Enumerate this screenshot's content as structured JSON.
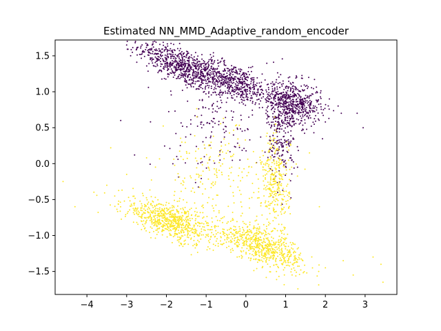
{
  "chart_data": {
    "type": "scatter",
    "title": "Estimated NN_MMD_Adaptive_random_encoder",
    "xlabel": "",
    "ylabel": "",
    "xlim": [
      -4.8,
      3.8
    ],
    "ylim": [
      -1.82,
      1.72
    ],
    "x_ticks": [
      -4,
      -3,
      -2,
      -1,
      0,
      1,
      2,
      3
    ],
    "y_ticks": [
      -1.5,
      -1.0,
      -0.5,
      0.0,
      0.5,
      1.0,
      1.5
    ],
    "x_tick_labels": [
      "−4",
      "−3",
      "−2",
      "−1",
      "0",
      "1",
      "2",
      "3"
    ],
    "y_tick_labels": [
      "−1.5",
      "−1.0",
      "−0.5",
      "0.0",
      "0.5",
      "1.0",
      "1.5"
    ],
    "grid": false,
    "legend": "none",
    "series": [
      {
        "color": "#440154",
        "clusters": [
          {
            "center": [
              -1.6,
              1.35
            ],
            "spread": [
              0.55,
              0.12
            ],
            "slope": -0.25,
            "count": 700
          },
          {
            "center": [
              -0.3,
              1.15
            ],
            "spread": [
              0.5,
              0.12
            ],
            "slope": -0.2,
            "count": 500
          },
          {
            "center": [
              1.2,
              0.85
            ],
            "spread": [
              0.35,
              0.15
            ],
            "slope": -0.1,
            "count": 550
          },
          {
            "center": [
              0.9,
              0.45
            ],
            "spread": [
              0.18,
              0.35
            ],
            "slope": 0.0,
            "count": 250
          },
          {
            "center": [
              -0.8,
              0.6
            ],
            "spread": [
              0.6,
              0.35
            ],
            "slope": 0.0,
            "count": 150
          }
        ],
        "points": [
          [
            -2.45,
            1.55
          ],
          [
            -2.35,
            1.4
          ],
          [
            -2.9,
            1.5
          ],
          [
            -3.0,
            1.65
          ],
          [
            -1.85,
            1.56
          ],
          [
            1.95,
            0.75
          ],
          [
            2.4,
            0.7
          ],
          [
            2.8,
            0.7
          ],
          [
            2.95,
            0.5
          ],
          [
            2.1,
            0.9
          ],
          [
            -3.15,
            0.6
          ],
          [
            -2.8,
            0.12
          ],
          [
            -2.4,
            0.58
          ],
          [
            0.7,
            0.05
          ],
          [
            0.8,
            -0.4
          ],
          [
            0.6,
            0.2
          ],
          [
            1.3,
            -0.05
          ],
          [
            0.85,
            0.3
          ],
          [
            -0.65,
            0.05
          ],
          [
            -0.15,
            0.05
          ]
        ]
      },
      {
        "color": "#fde725",
        "clusters": [
          {
            "center": [
              -1.9,
              -0.8
            ],
            "spread": [
              0.6,
              0.12
            ],
            "slope": -0.18,
            "count": 700
          },
          {
            "center": [
              0.4,
              -1.15
            ],
            "spread": [
              0.55,
              0.12
            ],
            "slope": -0.2,
            "count": 650
          },
          {
            "center": [
              0.75,
              -0.3
            ],
            "spread": [
              0.18,
              0.35
            ],
            "slope": 0.0,
            "count": 300
          },
          {
            "center": [
              -0.8,
              -0.2
            ],
            "spread": [
              0.7,
              0.35
            ],
            "slope": 0.0,
            "count": 200
          }
        ],
        "points": [
          [
            -4.6,
            -0.25
          ],
          [
            -4.3,
            -0.6
          ],
          [
            -3.5,
            -0.3
          ],
          [
            -3.4,
            0.22
          ],
          [
            -3.3,
            -0.45
          ],
          [
            -3.0,
            -0.15
          ],
          [
            -2.5,
            0.08
          ],
          [
            -2.8,
            -0.55
          ],
          [
            2.45,
            -1.35
          ],
          [
            2.7,
            -1.55
          ],
          [
            3.2,
            -1.3
          ],
          [
            3.4,
            -1.4
          ],
          [
            3.45,
            -1.65
          ],
          [
            2.0,
            -1.45
          ],
          [
            1.6,
            0.15
          ],
          [
            1.15,
            -0.05
          ],
          [
            0.9,
            -0.55
          ],
          [
            -0.45,
            0.18
          ],
          [
            0.75,
            0.55
          ],
          [
            1.85,
            -0.6
          ]
        ]
      }
    ]
  }
}
